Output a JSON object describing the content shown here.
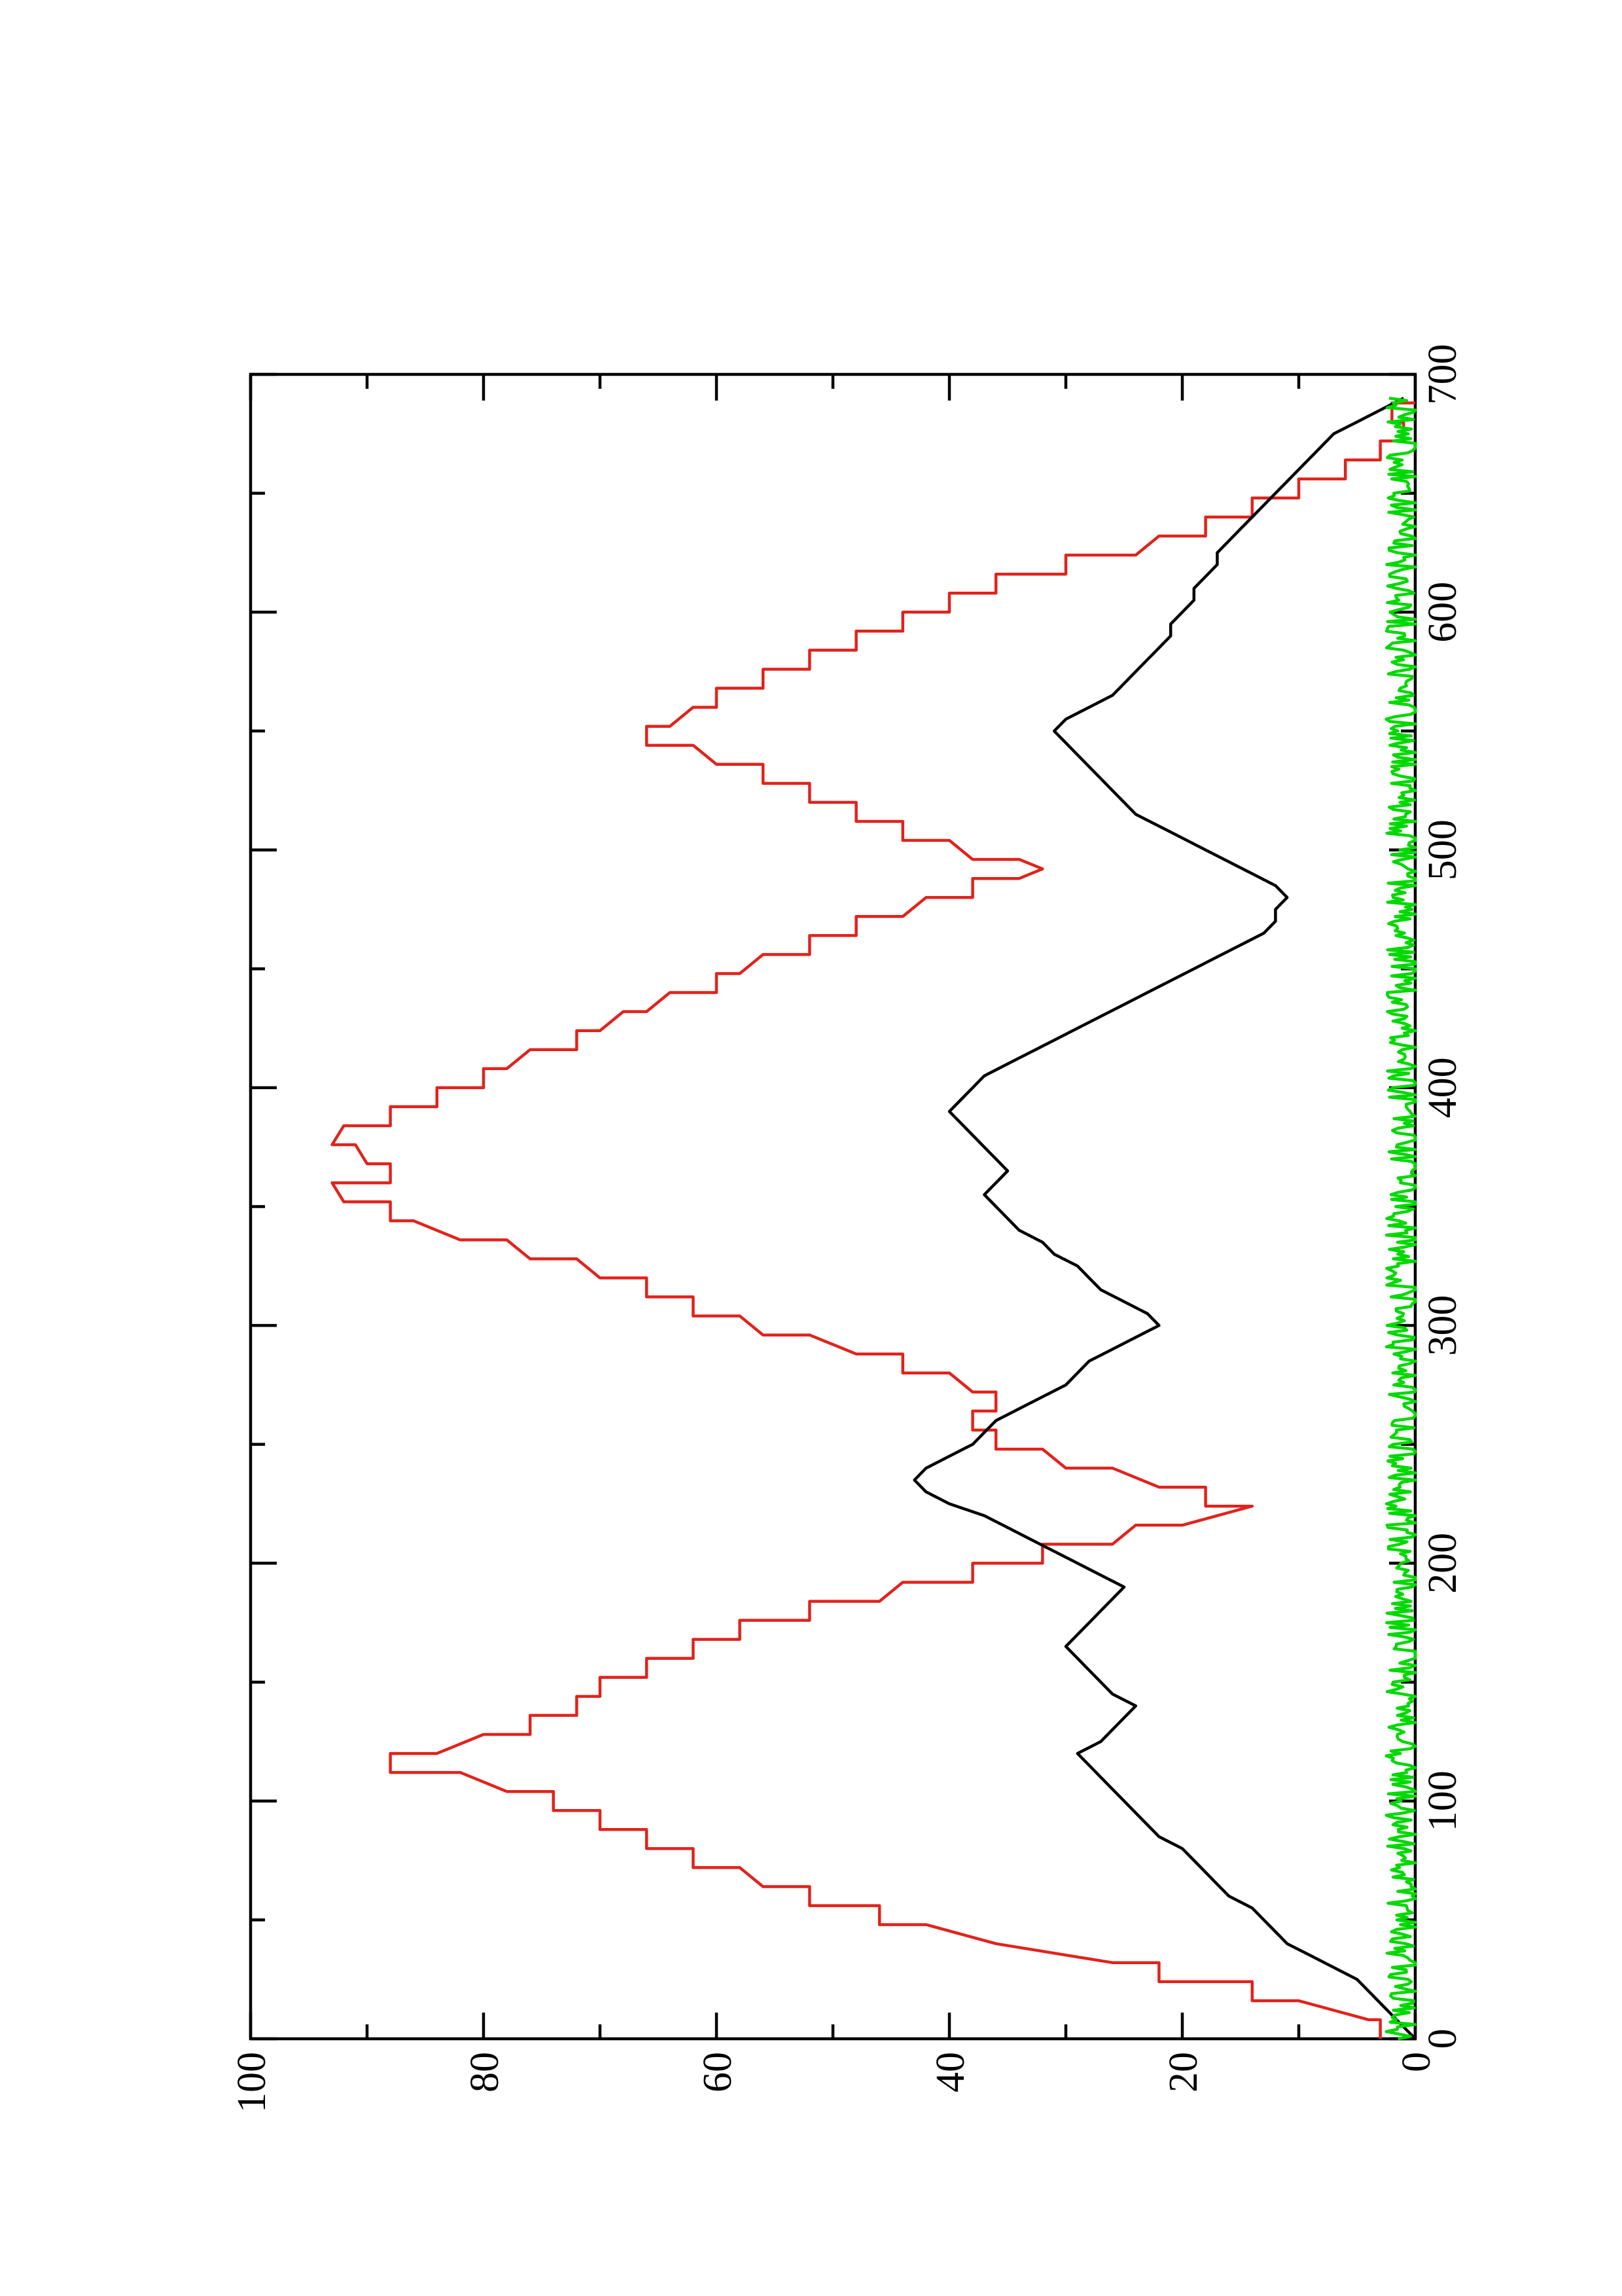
{
  "chart_data": {
    "type": "line",
    "title": "",
    "xlabel": "",
    "ylabel": "",
    "orientation": "rotated-90-counterclockwise",
    "xlim": [
      0,
      700
    ],
    "ylim": [
      0,
      100
    ],
    "x_ticks": [
      "0",
      "100",
      "200",
      "300",
      "400",
      "500",
      "600",
      "700"
    ],
    "y_ticks": [
      "0",
      "20",
      "40",
      "60",
      "80",
      "100"
    ],
    "series": [
      {
        "color": "#e0231c",
        "style": "step",
        "points": [
          [
            0,
            3
          ],
          [
            8,
            3
          ],
          [
            8,
            4
          ],
          [
            16,
            10
          ],
          [
            16,
            14
          ],
          [
            24,
            14
          ],
          [
            24,
            22
          ],
          [
            32,
            22
          ],
          [
            32,
            26
          ],
          [
            40,
            36
          ],
          [
            48,
            42
          ],
          [
            48,
            46
          ],
          [
            56,
            46
          ],
          [
            56,
            52
          ],
          [
            64,
            52
          ],
          [
            64,
            56
          ],
          [
            72,
            58
          ],
          [
            72,
            62
          ],
          [
            80,
            62
          ],
          [
            80,
            66
          ],
          [
            88,
            66
          ],
          [
            88,
            70
          ],
          [
            96,
            70
          ],
          [
            96,
            74
          ],
          [
            104,
            74
          ],
          [
            104,
            78
          ],
          [
            112,
            82
          ],
          [
            112,
            88
          ],
          [
            120,
            88
          ],
          [
            120,
            84
          ],
          [
            128,
            80
          ],
          [
            128,
            76
          ],
          [
            136,
            76
          ],
          [
            136,
            72
          ],
          [
            144,
            72
          ],
          [
            144,
            70
          ],
          [
            152,
            70
          ],
          [
            152,
            66
          ],
          [
            160,
            66
          ],
          [
            160,
            62
          ],
          [
            168,
            62
          ],
          [
            168,
            58
          ],
          [
            176,
            58
          ],
          [
            176,
            52
          ],
          [
            184,
            52
          ],
          [
            184,
            46
          ],
          [
            192,
            44
          ],
          [
            192,
            38
          ],
          [
            200,
            38
          ],
          [
            200,
            32
          ],
          [
            208,
            32
          ],
          [
            208,
            26
          ],
          [
            216,
            24
          ],
          [
            216,
            20
          ],
          [
            224,
            14
          ],
          [
            224,
            18
          ],
          [
            232,
            18
          ],
          [
            232,
            22
          ],
          [
            240,
            26
          ],
          [
            240,
            30
          ],
          [
            248,
            32
          ],
          [
            248,
            36
          ],
          [
            256,
            36
          ],
          [
            256,
            38
          ],
          [
            264,
            38
          ],
          [
            264,
            36
          ],
          [
            272,
            36
          ],
          [
            272,
            38
          ],
          [
            280,
            40
          ],
          [
            280,
            44
          ],
          [
            288,
            44
          ],
          [
            288,
            48
          ],
          [
            296,
            52
          ],
          [
            296,
            56
          ],
          [
            304,
            58
          ],
          [
            304,
            62
          ],
          [
            312,
            62
          ],
          [
            312,
            66
          ],
          [
            320,
            66
          ],
          [
            320,
            70
          ],
          [
            328,
            72
          ],
          [
            328,
            76
          ],
          [
            336,
            78
          ],
          [
            336,
            82
          ],
          [
            344,
            86
          ],
          [
            344,
            88
          ],
          [
            352,
            88
          ],
          [
            352,
            92
          ],
          [
            360,
            93
          ],
          [
            360,
            88
          ],
          [
            368,
            88
          ],
          [
            368,
            90
          ],
          [
            376,
            91
          ],
          [
            376,
            93
          ],
          [
            384,
            92
          ],
          [
            384,
            88
          ],
          [
            392,
            88
          ],
          [
            392,
            84
          ],
          [
            400,
            84
          ],
          [
            400,
            80
          ],
          [
            408,
            80
          ],
          [
            408,
            78
          ],
          [
            416,
            76
          ],
          [
            416,
            72
          ],
          [
            424,
            72
          ],
          [
            424,
            70
          ],
          [
            432,
            68
          ],
          [
            432,
            66
          ],
          [
            440,
            64
          ],
          [
            440,
            60
          ],
          [
            448,
            60
          ],
          [
            448,
            58
          ],
          [
            456,
            56
          ],
          [
            456,
            52
          ],
          [
            464,
            52
          ],
          [
            464,
            48
          ],
          [
            472,
            48
          ],
          [
            472,
            44
          ],
          [
            480,
            42
          ],
          [
            480,
            38
          ],
          [
            488,
            38
          ],
          [
            488,
            34
          ],
          [
            492,
            32
          ],
          [
            496,
            34
          ],
          [
            496,
            38
          ],
          [
            504,
            40
          ],
          [
            504,
            44
          ],
          [
            512,
            44
          ],
          [
            512,
            48
          ],
          [
            520,
            48
          ],
          [
            520,
            52
          ],
          [
            528,
            52
          ],
          [
            528,
            56
          ],
          [
            536,
            56
          ],
          [
            536,
            60
          ],
          [
            544,
            62
          ],
          [
            544,
            66
          ],
          [
            552,
            66
          ],
          [
            552,
            64
          ],
          [
            560,
            62
          ],
          [
            560,
            60
          ],
          [
            568,
            60
          ],
          [
            568,
            56
          ],
          [
            576,
            56
          ],
          [
            576,
            52
          ],
          [
            584,
            52
          ],
          [
            584,
            48
          ],
          [
            592,
            48
          ],
          [
            592,
            44
          ],
          [
            600,
            44
          ],
          [
            600,
            40
          ],
          [
            608,
            40
          ],
          [
            608,
            36
          ],
          [
            616,
            36
          ],
          [
            616,
            30
          ],
          [
            624,
            30
          ],
          [
            624,
            24
          ],
          [
            632,
            22
          ],
          [
            632,
            18
          ],
          [
            640,
            18
          ],
          [
            640,
            14
          ],
          [
            648,
            14
          ],
          [
            648,
            10
          ],
          [
            656,
            10
          ],
          [
            656,
            6
          ],
          [
            664,
            6
          ],
          [
            664,
            3
          ],
          [
            672,
            3
          ],
          [
            672,
            1
          ],
          [
            680,
            1
          ],
          [
            680,
            2
          ],
          [
            688,
            2
          ],
          [
            688,
            0
          ]
        ]
      },
      {
        "color": "#000000",
        "style": "line",
        "points": [
          [
            0,
            0
          ],
          [
            5,
            1
          ],
          [
            10,
            2
          ],
          [
            15,
            3
          ],
          [
            20,
            4
          ],
          [
            25,
            5
          ],
          [
            30,
            7
          ],
          [
            35,
            9
          ],
          [
            40,
            11
          ],
          [
            45,
            12
          ],
          [
            50,
            13
          ],
          [
            55,
            14
          ],
          [
            60,
            16
          ],
          [
            65,
            17
          ],
          [
            70,
            18
          ],
          [
            75,
            19
          ],
          [
            80,
            20
          ],
          [
            85,
            22
          ],
          [
            90,
            23
          ],
          [
            95,
            24
          ],
          [
            100,
            25
          ],
          [
            105,
            26
          ],
          [
            110,
            27
          ],
          [
            115,
            28
          ],
          [
            120,
            29
          ],
          [
            125,
            27
          ],
          [
            130,
            26
          ],
          [
            135,
            25
          ],
          [
            140,
            24
          ],
          [
            145,
            26
          ],
          [
            150,
            27
          ],
          [
            155,
            28
          ],
          [
            160,
            29
          ],
          [
            165,
            30
          ],
          [
            170,
            29
          ],
          [
            175,
            28
          ],
          [
            180,
            27
          ],
          [
            185,
            26
          ],
          [
            190,
            25
          ],
          [
            195,
            27
          ],
          [
            200,
            29
          ],
          [
            205,
            31
          ],
          [
            210,
            33
          ],
          [
            215,
            35
          ],
          [
            220,
            37
          ],
          [
            225,
            40
          ],
          [
            230,
            42
          ],
          [
            235,
            43
          ],
          [
            240,
            42
          ],
          [
            245,
            40
          ],
          [
            250,
            38
          ],
          [
            255,
            37
          ],
          [
            260,
            36
          ],
          [
            265,
            34
          ],
          [
            270,
            32
          ],
          [
            275,
            30
          ],
          [
            280,
            29
          ],
          [
            285,
            28
          ],
          [
            290,
            26
          ],
          [
            295,
            24
          ],
          [
            300,
            22
          ],
          [
            305,
            23
          ],
          [
            310,
            25
          ],
          [
            315,
            27
          ],
          [
            320,
            28
          ],
          [
            325,
            29
          ],
          [
            330,
            31
          ],
          [
            335,
            32
          ],
          [
            340,
            34
          ],
          [
            345,
            35
          ],
          [
            350,
            36
          ],
          [
            355,
            37
          ],
          [
            360,
            36
          ],
          [
            365,
            35
          ],
          [
            370,
            36
          ],
          [
            375,
            37
          ],
          [
            380,
            38
          ],
          [
            385,
            39
          ],
          [
            390,
            40
          ],
          [
            395,
            39
          ],
          [
            400,
            38
          ],
          [
            405,
            37
          ],
          [
            410,
            35
          ],
          [
            415,
            33
          ],
          [
            420,
            31
          ],
          [
            425,
            29
          ],
          [
            430,
            27
          ],
          [
            435,
            25
          ],
          [
            440,
            23
          ],
          [
            445,
            21
          ],
          [
            450,
            19
          ],
          [
            455,
            17
          ],
          [
            460,
            15
          ],
          [
            465,
            13
          ],
          [
            470,
            12
          ],
          [
            475,
            12
          ],
          [
            480,
            11
          ],
          [
            485,
            12
          ],
          [
            490,
            14
          ],
          [
            495,
            16
          ],
          [
            500,
            18
          ],
          [
            505,
            20
          ],
          [
            510,
            22
          ],
          [
            515,
            24
          ],
          [
            520,
            25
          ],
          [
            525,
            26
          ],
          [
            530,
            27
          ],
          [
            535,
            28
          ],
          [
            540,
            29
          ],
          [
            545,
            30
          ],
          [
            550,
            31
          ],
          [
            555,
            30
          ],
          [
            560,
            28
          ],
          [
            565,
            26
          ],
          [
            570,
            25
          ],
          [
            575,
            24
          ],
          [
            580,
            23
          ],
          [
            585,
            22
          ],
          [
            590,
            21
          ],
          [
            595,
            21
          ],
          [
            600,
            20
          ],
          [
            605,
            19
          ],
          [
            610,
            19
          ],
          [
            615,
            18
          ],
          [
            620,
            17
          ],
          [
            625,
            17
          ],
          [
            630,
            16
          ],
          [
            635,
            15
          ],
          [
            640,
            14
          ],
          [
            645,
            13
          ],
          [
            650,
            12
          ],
          [
            655,
            11
          ],
          [
            660,
            10
          ],
          [
            665,
            9
          ],
          [
            670,
            8
          ],
          [
            675,
            7
          ],
          [
            680,
            5
          ],
          [
            685,
            3
          ],
          [
            690,
            1
          ]
        ]
      },
      {
        "color": "#00d800",
        "style": "noisy",
        "baseline": 1,
        "amplitude": 1.5,
        "x_range": [
          0,
          690
        ]
      }
    ]
  }
}
